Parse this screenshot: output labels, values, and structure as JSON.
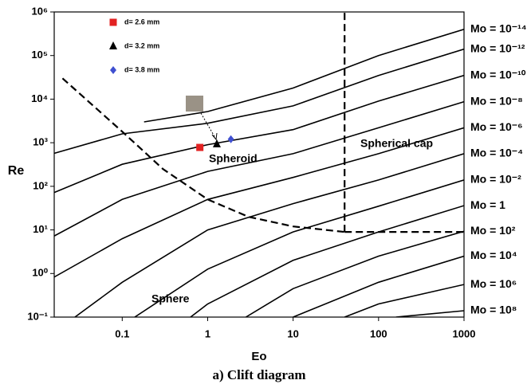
{
  "chart_data": {
    "type": "scatter",
    "caption": "a) Clift diagram",
    "xlabel": "Eo",
    "ylabel": "Re",
    "xscale": "log",
    "yscale": "log",
    "xlim": [
      0.016,
      1000
    ],
    "ylim": [
      0.1,
      1000000
    ],
    "xticks": [
      0.1,
      1,
      10,
      100,
      1000
    ],
    "yticks": [
      {
        "value": 0.1,
        "label": "10⁻¹"
      },
      {
        "value": 1,
        "label": "10⁰"
      },
      {
        "value": 10,
        "label": "10¹"
      },
      {
        "value": 100,
        "label": "10²"
      },
      {
        "value": 1000,
        "label": "10³"
      },
      {
        "value": 10000,
        "label": "10⁴"
      },
      {
        "value": 100000,
        "label": "10⁵"
      },
      {
        "value": 1000000,
        "label": "10⁶"
      }
    ],
    "legend": "upper left",
    "series": [
      {
        "name": "d= 2.6 mm",
        "color": "#e32222",
        "marker": "square",
        "x": [
          0.81
        ],
        "values": [
          780
        ]
      },
      {
        "name": "d= 3.2 mm",
        "color": "#000000",
        "marker": "triangle",
        "x": [
          1.28
        ],
        "values": [
          930
        ]
      },
      {
        "name": "d= 3.8 mm",
        "color": "#3f4fd0",
        "marker": "diamond",
        "x": [
          1.87
        ],
        "values": [
          1200
        ]
      }
    ],
    "curves": [
      {
        "name": "Mo = 10⁻¹⁴",
        "x": [
          0.18,
          1,
          10,
          100,
          1000
        ],
        "values": [
          3000,
          5200,
          18000,
          100000,
          400000
        ]
      },
      {
        "name": "Mo = 10⁻¹²",
        "x": [
          0.0155,
          0.1,
          1,
          10,
          100,
          1000
        ],
        "values": [
          560,
          1600,
          2800,
          7000,
          35000,
          140000
        ]
      },
      {
        "name": "Mo = 10⁻¹⁰",
        "x": [
          0.0155,
          0.1,
          1,
          10,
          100,
          1000
        ],
        "values": [
          70,
          320,
          900,
          2000,
          9000,
          35000
        ]
      },
      {
        "name": "Mo = 10⁻⁸",
        "x": [
          0.0155,
          0.1,
          1,
          10,
          100,
          1000
        ],
        "values": [
          7,
          50,
          220,
          560,
          2200,
          8700
        ]
      },
      {
        "name": "Mo = 10⁻⁶",
        "x": [
          0.0155,
          0.1,
          1,
          10,
          100,
          1000
        ],
        "values": [
          0.8,
          6.3,
          50,
          160,
          560,
          2200
        ]
      },
      {
        "name": "Mo = 10⁻⁴",
        "x": [
          0.028,
          0.1,
          1,
          10,
          100,
          1000
        ],
        "values": [
          0.1,
          0.63,
          10,
          40,
          140,
          560
        ]
      },
      {
        "name": "Mo = 10⁻²",
        "x": [
          0.14,
          1,
          10,
          100,
          1000
        ],
        "values": [
          0.1,
          1.26,
          9,
          35,
          140
        ]
      },
      {
        "name": "Mo = 1",
        "x": [
          0.63,
          1,
          10,
          100,
          1000
        ],
        "values": [
          0.1,
          0.2,
          2,
          9,
          36
        ]
      },
      {
        "name": "Mo = 10²",
        "x": [
          2.8,
          10,
          100,
          1000
        ],
        "values": [
          0.1,
          0.45,
          2.5,
          9.3
        ]
      },
      {
        "name": "Mo = 10⁴",
        "x": [
          10,
          100,
          1000
        ],
        "values": [
          0.1,
          0.63,
          2.5
        ]
      },
      {
        "name": "Mo = 10⁶",
        "x": [
          40,
          100,
          1000
        ],
        "values": [
          0.1,
          0.2,
          0.56
        ]
      },
      {
        "name": "Mo = 10⁸",
        "x": [
          160,
          1000
        ],
        "values": [
          0.1,
          0.14
        ]
      }
    ],
    "boundaries": [
      {
        "x": [
          0.02,
          0.1,
          0.3,
          1,
          3,
          10,
          40
        ],
        "values": [
          30000,
          1800,
          250,
          50,
          20,
          12,
          9
        ]
      },
      {
        "x": [
          40,
          1000
        ],
        "values": [
          9,
          9
        ]
      },
      {
        "x": [
          40,
          40
        ],
        "values": [
          9,
          1000000
        ]
      }
    ],
    "regions": [
      "Spheroid",
      "Spherical cap",
      "Sphere"
    ]
  }
}
